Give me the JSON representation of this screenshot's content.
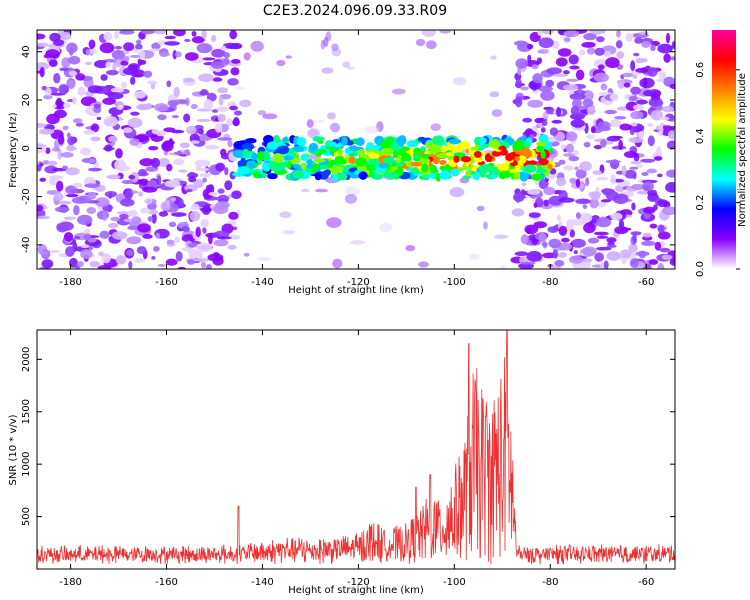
{
  "title": "C2E3.2024.096.09.33.R09",
  "chart_data": [
    {
      "type": "heatmap",
      "name": "spectrogram",
      "xlabel": "Height of straight line (km)",
      "ylabel": "Frequency (Hz)",
      "xlim": [
        -187,
        -54
      ],
      "ylim": [
        -50,
        49
      ],
      "xticks": [
        "-180",
        "-160",
        "-140",
        "-120",
        "-100",
        "-80",
        "-60"
      ],
      "yticks": [
        "-40",
        "-20",
        "0",
        "20",
        "40"
      ],
      "empty_band_x": [
        -145,
        -87
      ],
      "signal_band": {
        "x": [
          -145,
          -80
        ],
        "y": [
          -12,
          4
        ],
        "peak_x": -90,
        "peak_y": 0
      },
      "colorbar": {
        "label": "Normalized spectral amplitude",
        "ticks": [
          "0.0",
          "0.2",
          "0.4",
          "0.6"
        ],
        "range": [
          0,
          0.72
        ],
        "colormap": [
          "#ffffff",
          "#8a00ff",
          "#0000ff",
          "#00ffff",
          "#00ff00",
          "#ffff00",
          "#ff8000",
          "#ff0000",
          "#ff00a0"
        ]
      },
      "grid": false
    },
    {
      "type": "line",
      "name": "snr",
      "xlabel": "Height of straight line (km)",
      "ylabel": "SNR (10 * v/v)",
      "xlim": [
        -187,
        -54
      ],
      "ylim": [
        0,
        2280
      ],
      "xticks": [
        "-180",
        "-160",
        "-140",
        "-120",
        "-100",
        "-80",
        "-60"
      ],
      "yticks": [
        "500",
        "1000",
        "1500",
        "2000"
      ],
      "line_color": "#ee3030",
      "grid": false,
      "series": [
        {
          "x": [
            -187,
            -170,
            -150,
            -145,
            -140,
            -135,
            -130,
            -125,
            -120,
            -117,
            -115,
            -112,
            -110,
            -107,
            -105,
            -103,
            -100,
            -98,
            -96,
            -94,
            -92,
            -90,
            -89,
            -88,
            -87,
            -85,
            -80,
            -70,
            -60,
            -54
          ],
          "y": [
            130,
            140,
            140,
            150,
            180,
            220,
            220,
            230,
            260,
            420,
            320,
            330,
            360,
            500,
            700,
            600,
            900,
            1200,
            1900,
            1700,
            1600,
            1950,
            2100,
            1400,
            150,
            140,
            140,
            150,
            140,
            150
          ]
        }
      ],
      "spikes": [
        {
          "x": -145,
          "y": 600
        },
        {
          "x": -108,
          "y": 780
        },
        {
          "x": -105,
          "y": 900
        },
        {
          "x": -97,
          "y": 2150
        },
        {
          "x": -89,
          "y": 2270
        }
      ]
    }
  ]
}
